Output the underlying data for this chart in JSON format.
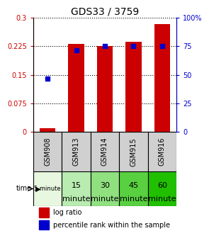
{
  "title": "GDS33 / 3759",
  "categories": [
    "GSM908",
    "GSM913",
    "GSM914",
    "GSM915",
    "GSM916"
  ],
  "time_labels_row1": [
    "5 minute",
    "15",
    "30",
    "45",
    "60"
  ],
  "time_labels_row2": [
    "",
    "minute",
    "minute",
    "minute",
    "minute"
  ],
  "log_ratio": [
    0.01,
    0.231,
    0.226,
    0.236,
    0.284
  ],
  "percentile_rank": [
    0.14,
    0.215,
    0.225,
    0.225,
    0.225
  ],
  "bar_color": "#cc0000",
  "square_color": "#0000cc",
  "ylim_left": [
    0,
    0.3
  ],
  "ylim_right": [
    0,
    100
  ],
  "yticks_left": [
    0,
    0.075,
    0.15,
    0.225,
    0.3
  ],
  "yticks_right": [
    0,
    25,
    50,
    75,
    100
  ],
  "ytick_labels_left": [
    "0",
    "0.075",
    "0.15",
    "0.225",
    "0.3"
  ],
  "ytick_labels_right": [
    "0",
    "25",
    "50",
    "75",
    "100%"
  ],
  "bar_width": 0.55,
  "time_bg_colors": [
    "#e8f8e0",
    "#b8ecb0",
    "#90e080",
    "#58d040",
    "#20c000"
  ],
  "gsm_bg_color": "#d0d0d0",
  "legend_items": [
    "log ratio",
    "percentile rank within the sample"
  ],
  "legend_colors": [
    "#cc0000",
    "#0000cc"
  ],
  "time_small_font": 6.0,
  "time_large_font": 8.0
}
